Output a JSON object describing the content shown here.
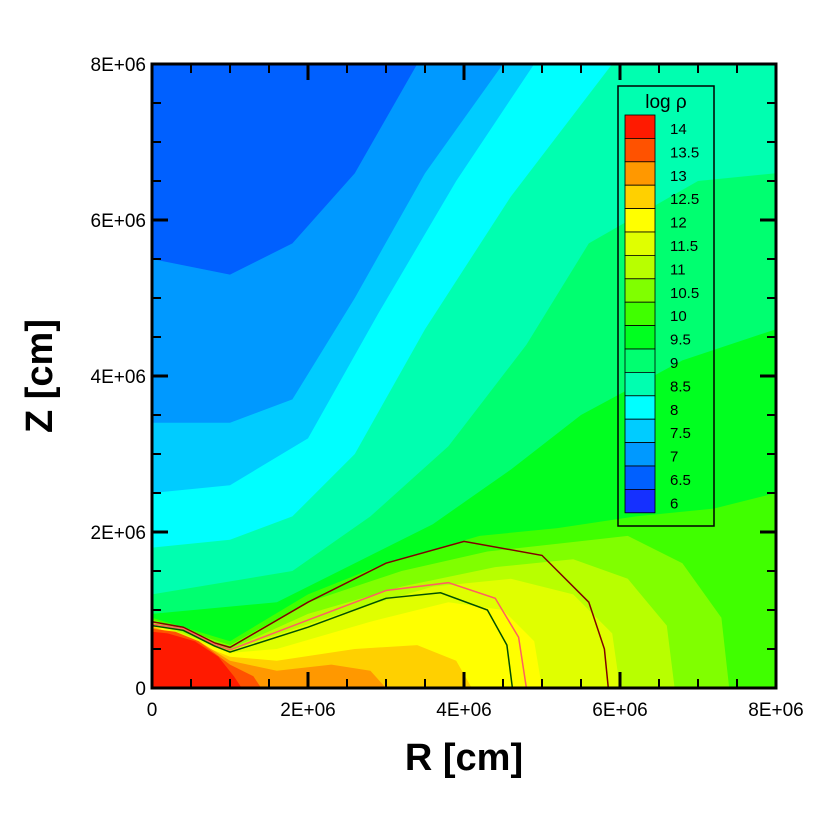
{
  "chart_data": {
    "type": "heatmap",
    "title": "",
    "xlabel": "R [cm]",
    "ylabel": "Z [cm]",
    "xlim": [
      0,
      8000000
    ],
    "ylim": [
      0,
      8000000
    ],
    "x_ticks": [
      "0",
      "2E+06",
      "4E+06",
      "6E+06",
      "8E+06"
    ],
    "y_ticks": [
      "0",
      "2E+06",
      "4E+06",
      "6E+06",
      "8E+06"
    ],
    "legend": {
      "title": "log ρ",
      "placement": "top-right",
      "levels": [
        "14",
        "13.5",
        "13",
        "12.5",
        "12",
        "11.5",
        "11",
        "10.5",
        "10",
        "9.5",
        "9",
        "8.5",
        "8",
        "7.5",
        "7",
        "6.5",
        "6"
      ],
      "colors": [
        "#ff1a00",
        "#ff5200",
        "#ff9800",
        "#ffd000",
        "#ffff00",
        "#e0ff00",
        "#b8ff00",
        "#80ff00",
        "#40ff00",
        "#00ff20",
        "#00ff70",
        "#00ffb0",
        "#00ffff",
        "#00ccff",
        "#0099ff",
        "#0060ff",
        "#1530ff"
      ]
    },
    "contour_lines": [
      {
        "color": "#800000",
        "points": [
          [
            0,
            850000
          ],
          [
            400000,
            780000
          ],
          [
            800000,
            580000
          ],
          [
            1000000,
            520000
          ],
          [
            2000000,
            1100000
          ],
          [
            3000000,
            1600000
          ],
          [
            4000000,
            1880000
          ],
          [
            5000000,
            1700000
          ],
          [
            5600000,
            1100000
          ],
          [
            5800000,
            500000
          ],
          [
            5850000,
            0
          ]
        ]
      },
      {
        "color": "#ff6060",
        "points": [
          [
            0,
            820000
          ],
          [
            400000,
            760000
          ],
          [
            800000,
            560000
          ],
          [
            1000000,
            490000
          ],
          [
            2000000,
            870000
          ],
          [
            3000000,
            1250000
          ],
          [
            3800000,
            1350000
          ],
          [
            4400000,
            1150000
          ],
          [
            4700000,
            650000
          ],
          [
            4800000,
            0
          ]
        ]
      },
      {
        "color": "#005000",
        "points": [
          [
            0,
            800000
          ],
          [
            400000,
            740000
          ],
          [
            800000,
            540000
          ],
          [
            1000000,
            460000
          ],
          [
            2000000,
            780000
          ],
          [
            3000000,
            1150000
          ],
          [
            3700000,
            1220000
          ],
          [
            4300000,
            1000000
          ],
          [
            4550000,
            550000
          ],
          [
            4620000,
            0
          ]
        ]
      }
    ]
  }
}
